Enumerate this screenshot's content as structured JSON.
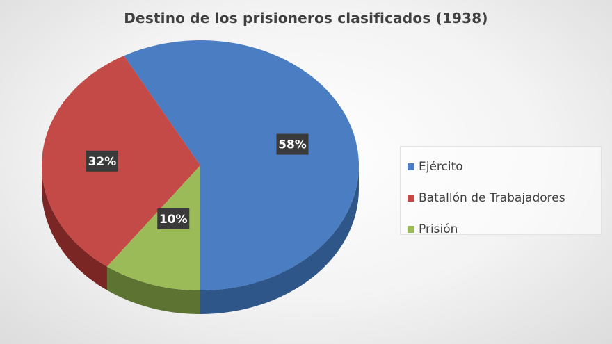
{
  "chart_data": {
    "type": "pie",
    "title": "Destino de los prisioneros clasificados (1938)",
    "categories": [
      "Ejército",
      "Batallón de Trabajadores",
      "Prisión"
    ],
    "values": [
      58,
      32,
      10
    ],
    "labels": [
      "58%",
      "32%",
      "10%"
    ],
    "colors": [
      "#4a7dc1",
      "#c44a47",
      "#9bbb59"
    ],
    "side_colors": [
      "#2f5688",
      "#7a2624",
      "#5c7331"
    ],
    "legend_position": "right",
    "three_d": true
  }
}
